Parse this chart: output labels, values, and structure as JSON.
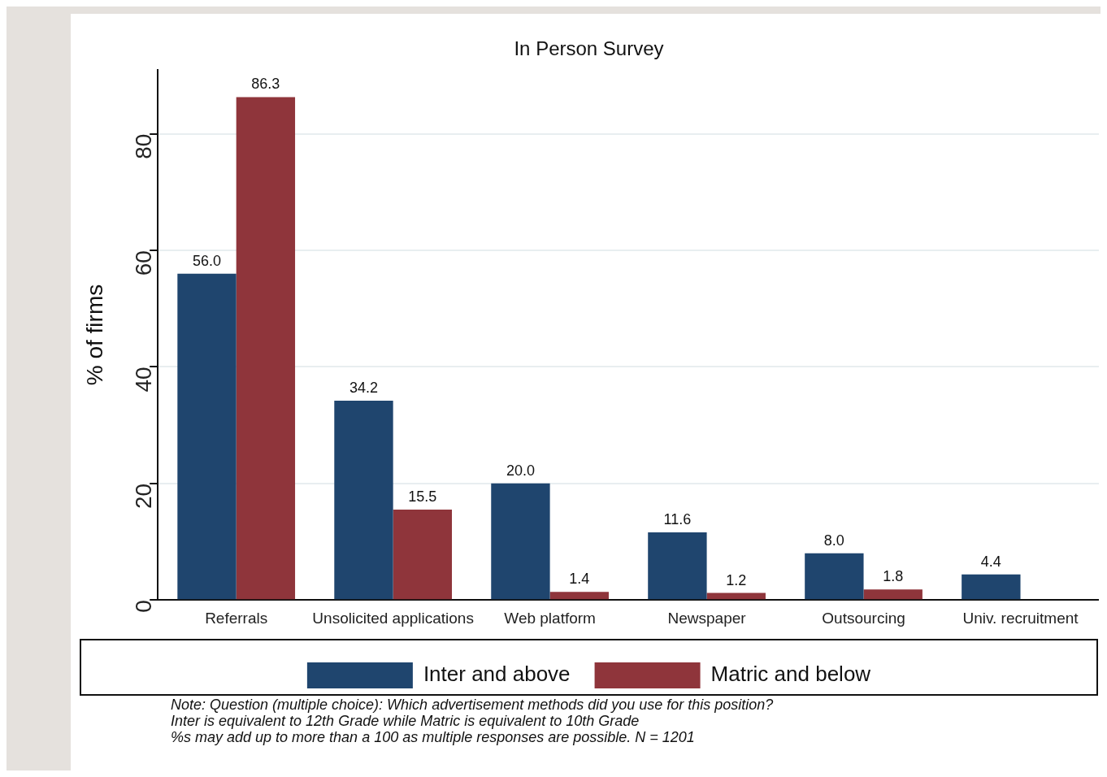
{
  "chart_data": {
    "type": "bar",
    "title": "In Person Survey",
    "ylabel": "% of firms",
    "categories": [
      "Referrals",
      "Unsolicited applications",
      "Web platform",
      "Newspaper",
      "Outsourcing",
      "Univ. recruitment"
    ],
    "series": [
      {
        "name": "Inter and above",
        "color": "#1f456e",
        "values": [
          56.0,
          34.2,
          20.0,
          11.6,
          8.0,
          4.4
        ],
        "value_labels": [
          "56.0",
          "34.2",
          "20.0",
          "11.6",
          "8.0",
          "4.4"
        ]
      },
      {
        "name": "Matric and below",
        "color": "#8f353b",
        "values": [
          86.3,
          15.5,
          1.4,
          1.2,
          1.8,
          null
        ],
        "value_labels": [
          "86.3",
          "15.5",
          "1.4",
          "1.2",
          "1.8",
          null
        ]
      }
    ],
    "ylim": [
      0,
      91
    ],
    "yticks": [
      0,
      20,
      40,
      60,
      80
    ],
    "grid": "y",
    "legend": "bottom",
    "annotations": [
      "Note: Question (multiple choice): Which advertisement methods did you use for this position?",
      "Inter is equivalent to 12th Grade while Matric is equivalent to 10th Grade",
      "%s may add up to more than a 100 as multiple responses are possible. N = 1201"
    ]
  }
}
